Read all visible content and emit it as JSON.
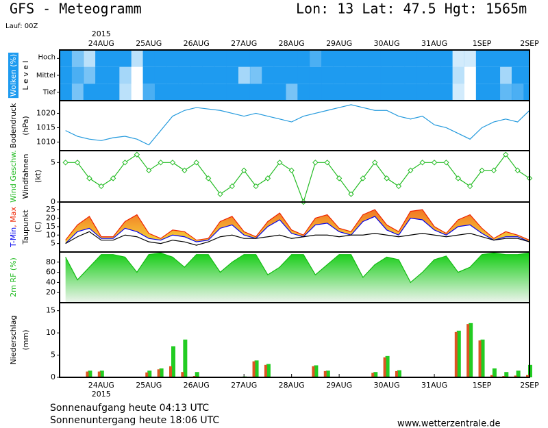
{
  "header": {
    "title": "GFS - Meteogramm",
    "location": "Lon: 13 Lat: 47.5 Hgt: 1565m",
    "run": "Lauf: 00Z"
  },
  "chart_data": {
    "type": "meteogram",
    "year": "2015",
    "xlim": [
      3,
      240
    ],
    "xticks": [
      {
        "value": 24,
        "label": "24AUG"
      },
      {
        "value": 48,
        "label": "25AUG"
      },
      {
        "value": 72,
        "label": "26AUG"
      },
      {
        "value": 96,
        "label": "27AUG"
      },
      {
        "value": 120,
        "label": "28AUG"
      },
      {
        "value": 144,
        "label": "29AUG"
      },
      {
        "value": 168,
        "label": "30AUG"
      },
      {
        "value": 192,
        "label": "31AUG"
      },
      {
        "value": 216,
        "label": "1SEP"
      },
      {
        "value": 240,
        "label": "2SEP"
      }
    ],
    "x": [
      6,
      12,
      18,
      24,
      30,
      36,
      42,
      48,
      54,
      60,
      66,
      72,
      78,
      84,
      90,
      96,
      102,
      108,
      114,
      120,
      126,
      132,
      138,
      144,
      150,
      156,
      162,
      168,
      174,
      180,
      186,
      192,
      198,
      204,
      210,
      216,
      222,
      228,
      234,
      240
    ],
    "panels": [
      {
        "type": "cloud",
        "ylabels": [
          [
            {
              "text": "Wolken (%)",
              "color": "#ffffff",
              "background": "#1e9bf0"
            }
          ],
          [
            {
              "text": "L e v e l",
              "color": "#000000"
            }
          ]
        ],
        "series": [
          {
            "name": "Hoch",
            "color": "#1e9bf0",
            "values": [
              100,
              60,
              30,
              100,
              100,
              100,
              30,
              100,
              100,
              100,
              100,
              100,
              100,
              100,
              100,
              100,
              100,
              100,
              100,
              100,
              100,
              80,
              100,
              100,
              100,
              100,
              100,
              100,
              100,
              100,
              100,
              100,
              100,
              20,
              20,
              100,
              100,
              100,
              100,
              100
            ]
          },
          {
            "name": "Mittel",
            "color": "#1e9bf0",
            "values": [
              100,
              80,
              60,
              100,
              100,
              40,
              0,
              100,
              100,
              100,
              100,
              100,
              100,
              100,
              100,
              40,
              60,
              100,
              100,
              100,
              100,
              100,
              100,
              100,
              100,
              100,
              100,
              100,
              100,
              100,
              100,
              100,
              100,
              30,
              0,
              100,
              100,
              40,
              100,
              100
            ]
          },
          {
            "name": "Tief",
            "color": "#1e9bf0",
            "values": [
              100,
              60,
              100,
              100,
              100,
              30,
              0,
              80,
              100,
              100,
              100,
              100,
              100,
              100,
              100,
              100,
              100,
              100,
              100,
              60,
              100,
              100,
              100,
              100,
              100,
              100,
              100,
              100,
              100,
              100,
              100,
              100,
              100,
              20,
              0,
              100,
              100,
              70,
              80,
              100
            ]
          }
        ]
      },
      {
        "type": "line",
        "ylabels": [
          [
            {
              "text": "Bodendruck",
              "color": "#000000"
            }
          ],
          [
            {
              "text": "(hPa)",
              "color": "#000000"
            }
          ]
        ],
        "ylim": [
          1007,
          1024.4
        ],
        "yticks": [
          1010,
          1015,
          1020
        ],
        "series": [
          {
            "color": "#2299dd",
            "values": [
              1014,
              1012,
              1011,
              1010.5,
              1011.5,
              1012,
              1011,
              1009,
              1014,
              1019,
              1021,
              1022,
              1021.5,
              1021,
              1020,
              1019,
              1020,
              1019,
              1018,
              1017,
              1019,
              1020,
              1021,
              1022,
              1023,
              1022,
              1021,
              1021,
              1019,
              1018,
              1019,
              1016,
              1015,
              1013,
              1011,
              1015,
              1017,
              1018,
              1017,
              1021
            ]
          }
        ]
      },
      {
        "type": "line",
        "ylabels": [
          [
            {
              "text": "Wind Geschw.",
              "color": "#22bb22"
            }
          ],
          [
            {
              "text": "Windfahnen",
              "color": "#000000"
            }
          ],
          [
            {
              "text": "(kt)",
              "color": "#000000"
            }
          ]
        ],
        "ylim": [
          0,
          6.5
        ],
        "yticks": [
          0,
          5
        ],
        "series": [
          {
            "color": "#22bb22",
            "marker": "diamond",
            "values": [
              5,
              5,
              3,
              2,
              3,
              5,
              6,
              4,
              5,
              5,
              4,
              5,
              3,
              1,
              2,
              4,
              2,
              3,
              5,
              4,
              0,
              5,
              5,
              3,
              1,
              3,
              5,
              3,
              2,
              4,
              5,
              5,
              5,
              3,
              2,
              4,
              4,
              6,
              4,
              3
            ]
          }
        ]
      },
      {
        "type": "band",
        "ylabels": [
          [
            {
              "text": "T-Min",
              "color": "#0000ee"
            },
            {
              "text": ", Max",
              "color": "#ee2200"
            }
          ],
          [
            {
              "text": "Taupunkt",
              "color": "#000000"
            }
          ],
          [
            {
              "text": "(C)",
              "color": "#000000"
            }
          ]
        ],
        "ylim": [
          0,
          29.5
        ],
        "yticks": [
          5,
          10,
          15,
          20,
          25
        ],
        "fill_between": [
          1,
          0
        ],
        "fill_colors": [
          "#f06020",
          "#f8f040"
        ],
        "series": [
          {
            "color": "#0000ee",
            "values": [
              5,
              12,
              14,
              8,
              8,
              14,
              12,
              8,
              7,
              10,
              9,
              6,
              7,
              14,
              16,
              10,
              8,
              15,
              19,
              11,
              9,
              16,
              17,
              12,
              10,
              18,
              21,
              13,
              10,
              20,
              19,
              13,
              10,
              15,
              16,
              11,
              7,
              9,
              9,
              6
            ]
          },
          {
            "color": "#ee2200",
            "values": [
              7,
              16,
              21,
              9,
              9,
              18,
              22,
              11,
              8,
              13,
              12,
              7,
              8,
              18,
              21,
              12,
              9,
              18,
              23,
              13,
              10,
              20,
              22,
              14,
              12,
              22,
              25,
              16,
              12,
              24,
              25,
              15,
              11,
              19,
              22,
              14,
              8,
              12,
              10,
              7
            ]
          },
          {
            "color": "#000000",
            "values": [
              5,
              9,
              12,
              7,
              7,
              10,
              9,
              6,
              5,
              7,
              6,
              4,
              6,
              9,
              10,
              8,
              8,
              9,
              10,
              8,
              9,
              10,
              10,
              9,
              10,
              10,
              11,
              10,
              9,
              10,
              11,
              10,
              9,
              10,
              11,
              9,
              7,
              8,
              8,
              6
            ]
          }
        ]
      },
      {
        "type": "area",
        "ylabels": [
          [
            {
              "text": "2m RF (%)",
              "color": "#22bb22"
            }
          ]
        ],
        "ylim": [
          0,
          100
        ],
        "yticks": [
          20,
          40,
          60,
          80
        ],
        "fill_colors": [
          "#11cc11",
          "#eef4ee"
        ],
        "series": [
          {
            "color": "#11bb11",
            "values": [
              90,
              45,
              70,
              95,
              95,
              90,
              60,
              95,
              98,
              90,
              70,
              95,
              95,
              60,
              80,
              95,
              95,
              55,
              70,
              95,
              95,
              55,
              75,
              95,
              95,
              50,
              75,
              90,
              85,
              40,
              60,
              85,
              92,
              60,
              70,
              95,
              98,
              95,
              95,
              98
            ]
          }
        ]
      },
      {
        "type": "bar",
        "ylabels": [
          [
            {
              "text": "Niederschlag",
              "color": "#000000"
            }
          ],
          [
            {
              "text": "(mm)",
              "color": "#000000"
            }
          ]
        ],
        "ylim": [
          0,
          16.8
        ],
        "yticks": [
          0,
          5,
          10,
          15
        ],
        "series": [
          {
            "color": "#22cc22",
            "values": [
              0,
              0,
              1.5,
              1.5,
              0,
              0,
              0,
              1.5,
              2,
              7,
              8.5,
              1.2,
              0,
              0,
              0,
              0.2,
              3.8,
              3,
              0,
              0,
              0,
              2.7,
              1.5,
              0,
              0,
              0,
              1.2,
              4.8,
              1.6,
              0,
              0,
              0,
              0,
              10.5,
              12.2,
              8.5,
              2,
              1.2,
              1.5,
              2.8
            ]
          },
          {
            "color": "#dd5522",
            "values": [
              0,
              0,
              1.3,
              1.3,
              0,
              0,
              0,
              1.1,
              1.8,
              2.5,
              1.2,
              0.3,
              0,
              0,
              0,
              0,
              3.6,
              2.8,
              0,
              0,
              0,
              2.5,
              1.4,
              0,
              0,
              0,
              1,
              4.5,
              1.4,
              0,
              0,
              0,
              0,
              10.2,
              12,
              8.3,
              0.5,
              0.3,
              0.4,
              0.5
            ]
          }
        ]
      }
    ]
  },
  "footer": {
    "sunrise": "Sonnenaufgang heute 04:13 UTC",
    "sunset": "Sonnenuntergang heute 18:06 UTC",
    "source": "www.wetterzentrale.de"
  }
}
